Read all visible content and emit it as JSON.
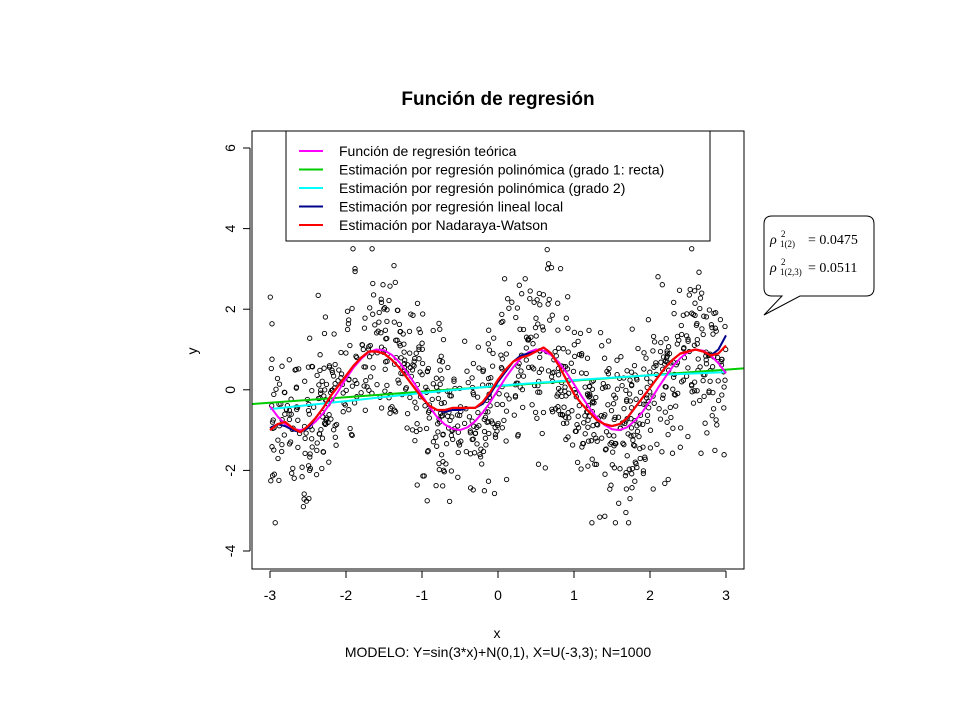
{
  "chart_data": {
    "type": "scatter",
    "title": "Función de regresión",
    "xlabel": "x",
    "ylabel": "y",
    "subtitle": "MODELO: Y=sin(3*x)+N(0,1), X=U(-3,3);  N=1000",
    "xlim": [
      -3.0,
      3.0
    ],
    "ylim": [
      -4.0,
      6.0
    ],
    "xticks": [
      "-3",
      "-2",
      "-1",
      "0",
      "1",
      "2",
      "3"
    ],
    "yticks": [
      "-4",
      "-2",
      "0",
      "2",
      "4",
      "6"
    ],
    "grid": false,
    "legend_position": "top-left",
    "point_count": 1000,
    "scatter_model": "y = sin(3x) + N(0,1), x ~ U(-3,3)",
    "series": [
      {
        "name": "Función de regresión teórica",
        "color": "#ff00ff",
        "kind": "line",
        "x": [
          -3.0,
          -2.9,
          -2.8,
          -2.7,
          -2.6,
          -2.5,
          -2.4,
          -2.3,
          -2.2,
          -2.1,
          -2.0,
          -1.9,
          -1.8,
          -1.7,
          -1.6,
          -1.5,
          -1.4,
          -1.3,
          -1.2,
          -1.1,
          -1.0,
          -0.9,
          -0.8,
          -0.7,
          -0.6,
          -0.5,
          -0.4,
          -0.3,
          -0.2,
          -0.1,
          0.0,
          0.1,
          0.2,
          0.3,
          0.4,
          0.5,
          0.6,
          0.7,
          0.8,
          0.9,
          1.0,
          1.1,
          1.2,
          1.3,
          1.4,
          1.5,
          1.6,
          1.7,
          1.8,
          1.9,
          2.0,
          2.1,
          2.2,
          2.3,
          2.4,
          2.5,
          2.6,
          2.7,
          2.8,
          2.9,
          3.0
        ],
        "y": [
          -0.41,
          -0.66,
          -0.85,
          -0.97,
          -1.0,
          -0.94,
          -0.79,
          -0.58,
          -0.31,
          -0.03,
          0.28,
          0.55,
          0.77,
          0.93,
          1.0,
          0.98,
          0.87,
          0.69,
          0.44,
          0.16,
          -0.14,
          -0.43,
          -0.68,
          -0.86,
          -0.97,
          -1.0,
          -0.93,
          -0.78,
          -0.56,
          -0.3,
          0.0,
          0.3,
          0.56,
          0.78,
          0.93,
          1.0,
          0.97,
          0.86,
          0.68,
          0.43,
          0.14,
          -0.16,
          -0.44,
          -0.69,
          -0.87,
          -0.98,
          -1.0,
          -0.93,
          -0.77,
          -0.55,
          -0.28,
          0.03,
          0.31,
          0.58,
          0.79,
          0.94,
          1.0,
          0.97,
          0.85,
          0.66,
          0.41
        ]
      },
      {
        "name": "Estimación por regresión polinómica (grado 1: recta)",
        "color": "#00cc00",
        "kind": "line",
        "x": [
          -3.0,
          3.0
        ],
        "y": [
          -0.32,
          0.5
        ]
      },
      {
        "name": "Estimación por regresión polinómica (grado 2)",
        "color": "#00ffff",
        "kind": "line",
        "x": [
          -3.0,
          -2.0,
          -1.0,
          0.0,
          1.0,
          2.0,
          3.0
        ],
        "y": [
          -0.48,
          -0.28,
          -0.08,
          0.1,
          0.24,
          0.36,
          0.44
        ]
      },
      {
        "name": "Estimación por regresión lineal local",
        "color": "#00008b",
        "kind": "line",
        "x": [
          -3.0,
          -2.9,
          -2.8,
          -2.7,
          -2.6,
          -2.5,
          -2.4,
          -2.3,
          -2.2,
          -2.1,
          -2.0,
          -1.9,
          -1.8,
          -1.7,
          -1.6,
          -1.5,
          -1.4,
          -1.3,
          -1.2,
          -1.1,
          -1.0,
          -0.9,
          -0.8,
          -0.7,
          -0.6,
          -0.5,
          -0.4,
          -0.3,
          -0.2,
          -0.1,
          0.0,
          0.1,
          0.2,
          0.3,
          0.4,
          0.5,
          0.6,
          0.7,
          0.8,
          0.9,
          1.0,
          1.1,
          1.2,
          1.3,
          1.4,
          1.5,
          1.6,
          1.7,
          1.8,
          1.9,
          2.0,
          2.1,
          2.2,
          2.3,
          2.4,
          2.5,
          2.6,
          2.7,
          2.8,
          2.9,
          3.0
        ],
        "y": [
          -0.95,
          -0.85,
          -0.9,
          -1.0,
          -1.05,
          -0.95,
          -0.7,
          -0.45,
          -0.15,
          0.1,
          0.35,
          0.6,
          0.8,
          0.95,
          0.95,
          0.9,
          0.75,
          0.55,
          0.3,
          0.05,
          -0.2,
          -0.4,
          -0.5,
          -0.55,
          -0.5,
          -0.5,
          -0.45,
          -0.45,
          -0.35,
          -0.1,
          0.2,
          0.45,
          0.7,
          0.85,
          0.9,
          0.95,
          1.05,
          0.9,
          0.6,
          0.25,
          -0.1,
          -0.35,
          -0.55,
          -0.75,
          -0.85,
          -0.9,
          -0.85,
          -0.7,
          -0.45,
          -0.2,
          0.05,
          0.3,
          0.55,
          0.75,
          0.9,
          0.95,
          1.0,
          0.95,
          0.85,
          1.0,
          1.35
        ]
      },
      {
        "name": "Estimación por Nadaraya-Watson",
        "color": "#ff0000",
        "kind": "line",
        "x": [
          -3.0,
          -2.9,
          -2.8,
          -2.7,
          -2.6,
          -2.5,
          -2.4,
          -2.3,
          -2.2,
          -2.1,
          -2.0,
          -1.9,
          -1.8,
          -1.7,
          -1.6,
          -1.5,
          -1.4,
          -1.3,
          -1.2,
          -1.1,
          -1.0,
          -0.9,
          -0.8,
          -0.7,
          -0.6,
          -0.5,
          -0.4,
          -0.3,
          -0.2,
          -0.1,
          0.0,
          0.1,
          0.2,
          0.3,
          0.4,
          0.5,
          0.6,
          0.7,
          0.8,
          0.9,
          1.0,
          1.1,
          1.2,
          1.3,
          1.4,
          1.5,
          1.6,
          1.7,
          1.8,
          1.9,
          2.0,
          2.1,
          2.2,
          2.3,
          2.4,
          2.5,
          2.6,
          2.7,
          2.8,
          2.9,
          3.0
        ],
        "y": [
          -1.0,
          -0.85,
          -0.8,
          -0.95,
          -1.05,
          -0.9,
          -0.7,
          -0.45,
          -0.15,
          0.1,
          0.35,
          0.6,
          0.8,
          0.95,
          0.95,
          0.9,
          0.75,
          0.55,
          0.3,
          0.05,
          -0.2,
          -0.4,
          -0.5,
          -0.5,
          -0.45,
          -0.45,
          -0.45,
          -0.45,
          -0.3,
          -0.05,
          0.25,
          0.5,
          0.7,
          0.8,
          0.85,
          0.95,
          1.05,
          0.9,
          0.6,
          0.25,
          -0.1,
          -0.35,
          -0.55,
          -0.75,
          -0.85,
          -0.9,
          -0.85,
          -0.7,
          -0.45,
          -0.2,
          0.05,
          0.3,
          0.55,
          0.75,
          0.9,
          0.95,
          1.0,
          0.95,
          0.85,
          0.9,
          1.1
        ]
      }
    ]
  },
  "callout": {
    "lines": [
      {
        "label": "ρ",
        "sup": "2",
        "sub": "1(2)",
        "value": "= 0.0475"
      },
      {
        "label": "ρ",
        "sup": "2",
        "sub": "1(2,3)",
        "value": "= 0.0511"
      }
    ]
  }
}
